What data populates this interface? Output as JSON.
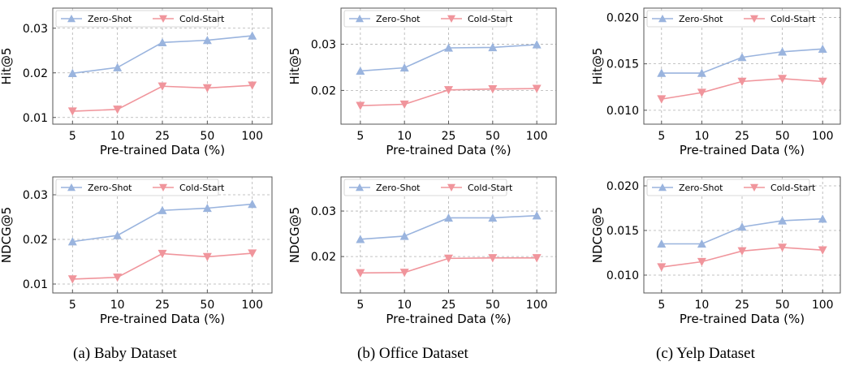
{
  "captions": [
    "(a) Baby Dataset",
    "(b) Office Dataset",
    "(c) Yelp Dataset"
  ],
  "colors": {
    "zero_shot": "#9ab4de",
    "cold_start": "#f0959c",
    "grid": "#b0b0b0",
    "axes": "#555555"
  },
  "chart_data": [
    {
      "type": "line",
      "dataset": "Baby",
      "metric": "Hit@5",
      "xlabel": "Pre-trained Data (%)",
      "ylabel": "Hit@5",
      "categories": [
        "5",
        "10",
        "25",
        "50",
        "100"
      ],
      "ylim": [
        0.0085,
        0.0345
      ],
      "yticks": [
        0.01,
        0.02,
        0.03
      ],
      "ytick_labels": [
        "0.01",
        "0.02",
        "0.03"
      ],
      "legend": "top-left",
      "grid": true,
      "series": [
        {
          "name": "Zero-Shot",
          "marker": "triangle-up",
          "values": [
            0.0199,
            0.0212,
            0.0268,
            0.0273,
            0.0283
          ]
        },
        {
          "name": "Cold-Start",
          "marker": "triangle-down",
          "values": [
            0.0114,
            0.0118,
            0.017,
            0.0166,
            0.0172
          ]
        }
      ]
    },
    {
      "type": "line",
      "dataset": "Office",
      "metric": "Hit@5",
      "xlabel": "Pre-trained Data (%)",
      "ylabel": "Hit@5",
      "categories": [
        "5",
        "10",
        "25",
        "50",
        "100"
      ],
      "ylim": [
        0.0127,
        0.0378
      ],
      "yticks": [
        0.02,
        0.03
      ],
      "ytick_labels": [
        "0.02",
        "0.03"
      ],
      "legend": "top-left",
      "grid": true,
      "series": [
        {
          "name": "Zero-Shot",
          "marker": "triangle-up",
          "values": [
            0.0242,
            0.0249,
            0.0292,
            0.0293,
            0.0299
          ]
        },
        {
          "name": "Cold-Start",
          "marker": "triangle-down",
          "values": [
            0.0167,
            0.017,
            0.0201,
            0.0203,
            0.0204
          ]
        }
      ]
    },
    {
      "type": "line",
      "dataset": "Yelp",
      "metric": "Hit@5",
      "xlabel": "Pre-trained Data (%)",
      "ylabel": "Hit@5",
      "categories": [
        "5",
        "10",
        "25",
        "50",
        "100"
      ],
      "ylim": [
        0.0085,
        0.021
      ],
      "yticks": [
        0.01,
        0.015,
        0.02
      ],
      "ytick_labels": [
        "0.010",
        "0.015",
        "0.020"
      ],
      "legend": "top-left",
      "grid": true,
      "series": [
        {
          "name": "Zero-Shot",
          "marker": "triangle-up",
          "values": [
            0.014,
            0.014,
            0.0157,
            0.0163,
            0.0166
          ]
        },
        {
          "name": "Cold-Start",
          "marker": "triangle-down",
          "values": [
            0.0112,
            0.0119,
            0.0131,
            0.0134,
            0.0131
          ]
        }
      ]
    },
    {
      "type": "line",
      "dataset": "Baby",
      "metric": "NDCG@5",
      "xlabel": "Pre-trained Data (%)",
      "ylabel": "NDCG@5",
      "categories": [
        "5",
        "10",
        "25",
        "50",
        "100"
      ],
      "ylim": [
        0.008,
        0.034
      ],
      "yticks": [
        0.01,
        0.02,
        0.03
      ],
      "ytick_labels": [
        "0.01",
        "0.02",
        "0.03"
      ],
      "legend": "top-left",
      "grid": true,
      "series": [
        {
          "name": "Zero-Shot",
          "marker": "triangle-up",
          "values": [
            0.0195,
            0.0209,
            0.0265,
            0.027,
            0.0279
          ]
        },
        {
          "name": "Cold-Start",
          "marker": "triangle-down",
          "values": [
            0.0111,
            0.0115,
            0.0168,
            0.0161,
            0.0169
          ]
        }
      ]
    },
    {
      "type": "line",
      "dataset": "Office",
      "metric": "NDCG@5",
      "xlabel": "Pre-trained Data (%)",
      "ylabel": "NDCG@5",
      "categories": [
        "5",
        "10",
        "25",
        "50",
        "100"
      ],
      "ylim": [
        0.012,
        0.0375
      ],
      "yticks": [
        0.02,
        0.03
      ],
      "ytick_labels": [
        "0.02",
        "0.03"
      ],
      "legend": "top-left",
      "grid": true,
      "series": [
        {
          "name": "Zero-Shot",
          "marker": "triangle-up",
          "values": [
            0.0238,
            0.0245,
            0.0285,
            0.0285,
            0.029
          ]
        },
        {
          "name": "Cold-Start",
          "marker": "triangle-down",
          "values": [
            0.0164,
            0.0165,
            0.0196,
            0.0197,
            0.0197
          ]
        }
      ]
    },
    {
      "type": "line",
      "dataset": "Yelp",
      "metric": "NDCG@5",
      "xlabel": "Pre-trained Data (%)",
      "ylabel": "NDCG@5",
      "categories": [
        "5",
        "10",
        "25",
        "50",
        "100"
      ],
      "ylim": [
        0.008,
        0.021
      ],
      "yticks": [
        0.01,
        0.015,
        0.02
      ],
      "ytick_labels": [
        "0.010",
        "0.015",
        "0.020"
      ],
      "legend": "top-left",
      "grid": true,
      "series": [
        {
          "name": "Zero-Shot",
          "marker": "triangle-up",
          "values": [
            0.0135,
            0.0135,
            0.0154,
            0.0161,
            0.0163
          ]
        },
        {
          "name": "Cold-Start",
          "marker": "triangle-down",
          "values": [
            0.0109,
            0.0115,
            0.0127,
            0.0131,
            0.0128
          ]
        }
      ]
    }
  ]
}
